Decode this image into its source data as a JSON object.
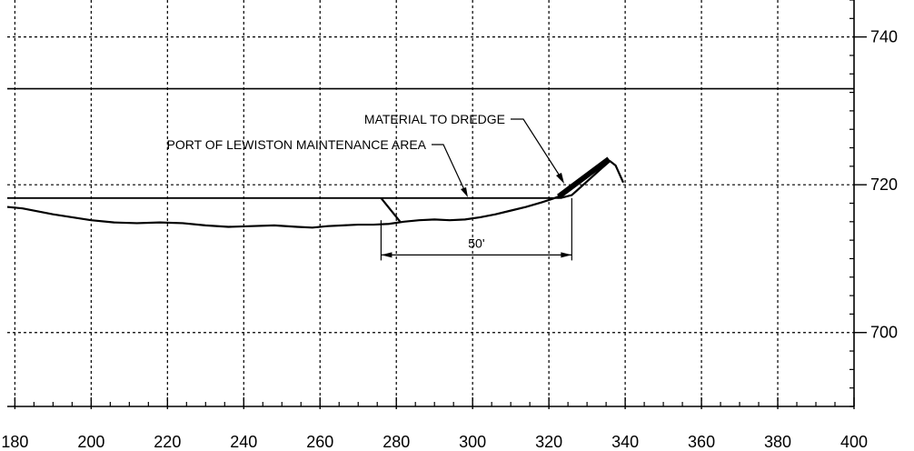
{
  "chart_data": {
    "type": "line",
    "title": "",
    "xlabel": "",
    "ylabel": "",
    "x_axis": {
      "range": [
        178,
        400
      ],
      "ticks": [
        "180",
        "200",
        "220",
        "240",
        "260",
        "280",
        "300",
        "320",
        "340",
        "360",
        "380",
        "400"
      ],
      "tick_values": [
        180,
        200,
        220,
        240,
        260,
        280,
        300,
        320,
        340,
        360,
        380,
        400
      ]
    },
    "y_axis": {
      "range": [
        690,
        745
      ],
      "position": "right",
      "ticks": [
        "700",
        "720",
        "740"
      ],
      "tick_values": [
        700,
        720,
        740
      ]
    },
    "grid": true,
    "series": [
      {
        "role": "ground-profile",
        "x": [
          178,
          182,
          186,
          190,
          195,
          200,
          206,
          212,
          218,
          224,
          230,
          236,
          242,
          248,
          254,
          258,
          262,
          266,
          270,
          274,
          278,
          282,
          286,
          290,
          294,
          298,
          302,
          306,
          310,
          314,
          318,
          321,
          323
        ],
        "y": [
          717.0,
          716.8,
          716.4,
          716.0,
          715.6,
          715.2,
          714.9,
          714.8,
          714.9,
          714.8,
          714.5,
          714.3,
          714.4,
          714.5,
          714.3,
          714.2,
          714.4,
          714.5,
          714.6,
          714.6,
          714.7,
          715.0,
          715.2,
          715.3,
          715.2,
          715.3,
          715.6,
          716.0,
          716.5,
          717.0,
          717.6,
          718.1,
          718.5
        ]
      },
      {
        "role": "maintenance-level",
        "x": [
          178,
          323
        ],
        "y": [
          718.2,
          718.2
        ]
      },
      {
        "role": "cut-slope",
        "x": [
          276,
          281
        ],
        "y": [
          718.2,
          715.0
        ]
      },
      {
        "role": "dredge-slope",
        "x": [
          323,
          326,
          334,
          336,
          337.5,
          339.5
        ],
        "y": [
          718.2,
          718.6,
          722.3,
          723.2,
          722.6,
          720.3
        ]
      }
    ],
    "annotations": [
      {
        "label": "MATERIAL TO DREDGE"
      },
      {
        "label": "PORT OF LEWISTON MAINTENANCE AREA"
      },
      {
        "label": "50'"
      }
    ],
    "reference_lines": [
      {
        "orientation": "horizontal",
        "y": 733
      }
    ],
    "dimension": {
      "from_x": 276,
      "to_x": 326,
      "label": "50'"
    }
  }
}
